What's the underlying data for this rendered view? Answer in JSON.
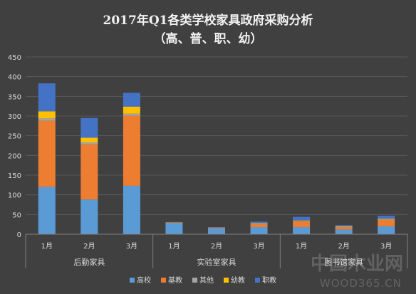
{
  "chart_data": {
    "type": "bar",
    "stacked": true,
    "title": "2017年Q1各类学校家具政府采购分析",
    "subtitle": "（高、普、职、幼）",
    "ylim": [
      0,
      450
    ],
    "yticks": [
      0,
      50,
      100,
      150,
      200,
      250,
      300,
      350,
      400,
      450
    ],
    "grid": true,
    "legend_position": "bottom",
    "groups": [
      {
        "name": "后勤家具",
        "categories": [
          "1月",
          "2月",
          "3月"
        ]
      },
      {
        "name": "实验室家具",
        "categories": [
          "1月",
          "2月",
          "3月"
        ]
      },
      {
        "name": "图书馆家具",
        "categories": [
          "1月",
          "2月",
          "3月"
        ]
      }
    ],
    "categories": [
      "1月",
      "2月",
      "3月",
      "1月",
      "2月",
      "3月",
      "1月",
      "2月",
      "3月"
    ],
    "series": [
      {
        "name": "高校",
        "color": "#5b9bd5",
        "values": [
          120,
          88,
          123,
          28,
          15,
          18,
          18,
          12,
          20
        ]
      },
      {
        "name": "基教",
        "color": "#ed7d31",
        "values": [
          168,
          140,
          178,
          2,
          2,
          8,
          15,
          6,
          17
        ]
      },
      {
        "name": "其他",
        "color": "#a5a5a5",
        "values": [
          6,
          5,
          5,
          0,
          0,
          1,
          1,
          1,
          1
        ]
      },
      {
        "name": "幼教",
        "color": "#ffc000",
        "values": [
          18,
          12,
          18,
          0,
          0,
          1,
          1,
          1,
          1
        ]
      },
      {
        "name": "职教",
        "color": "#4472c4",
        "values": [
          71,
          50,
          35,
          1,
          1,
          4,
          9,
          3,
          8
        ]
      }
    ]
  },
  "watermark": {
    "text": "中国木业网",
    "url_text": "WOOD365.CN"
  }
}
